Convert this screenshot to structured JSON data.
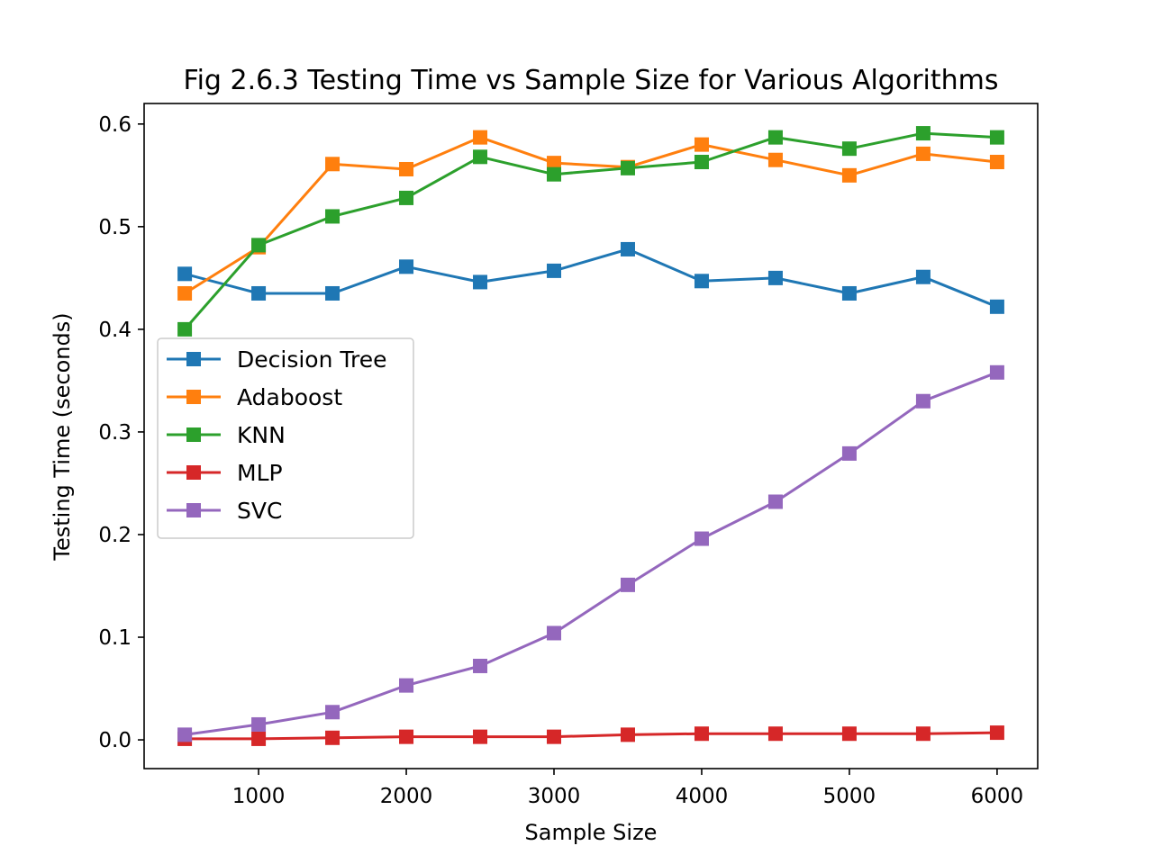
{
  "chart_data": {
    "type": "line",
    "title": "Fig 2.6.3 Testing Time vs Sample Size for Various Algorithms",
    "xlabel": "Sample Size",
    "ylabel": "Testing Time (seconds)",
    "xlim": [
      225,
      6275
    ],
    "ylim": [
      -0.028,
      0.62
    ],
    "xticks": [
      1000,
      2000,
      3000,
      4000,
      5000,
      6000
    ],
    "yticks": [
      0.0,
      0.1,
      0.2,
      0.3,
      0.4,
      0.5,
      0.6
    ],
    "grid": false,
    "legend_position": "center-left",
    "marker": "square",
    "x": [
      500,
      1000,
      1500,
      2000,
      2500,
      3000,
      3500,
      4000,
      4500,
      5000,
      5500,
      6000
    ],
    "series": [
      {
        "name": "Decision Tree",
        "color": "#1f77b4",
        "values": [
          0.454,
          0.435,
          0.435,
          0.461,
          0.446,
          0.457,
          0.478,
          0.447,
          0.45,
          0.435,
          0.451,
          0.422
        ]
      },
      {
        "name": "Adaboost",
        "color": "#ff7f0e",
        "values": [
          0.435,
          0.48,
          0.561,
          0.556,
          0.587,
          0.562,
          0.558,
          0.58,
          0.565,
          0.55,
          0.571,
          0.563
        ]
      },
      {
        "name": "KNN",
        "color": "#2ca02c",
        "values": [
          0.4,
          0.482,
          0.51,
          0.528,
          0.568,
          0.551,
          0.557,
          0.563,
          0.587,
          0.576,
          0.591,
          0.587
        ]
      },
      {
        "name": "MLP",
        "color": "#d62728",
        "values": [
          0.001,
          0.001,
          0.002,
          0.003,
          0.003,
          0.003,
          0.005,
          0.006,
          0.006,
          0.006,
          0.006,
          0.007
        ]
      },
      {
        "name": "SVC",
        "color": "#9467bd",
        "values": [
          0.005,
          0.015,
          0.027,
          0.053,
          0.072,
          0.104,
          0.151,
          0.196,
          0.232,
          0.279,
          0.33,
          0.358
        ]
      }
    ]
  }
}
